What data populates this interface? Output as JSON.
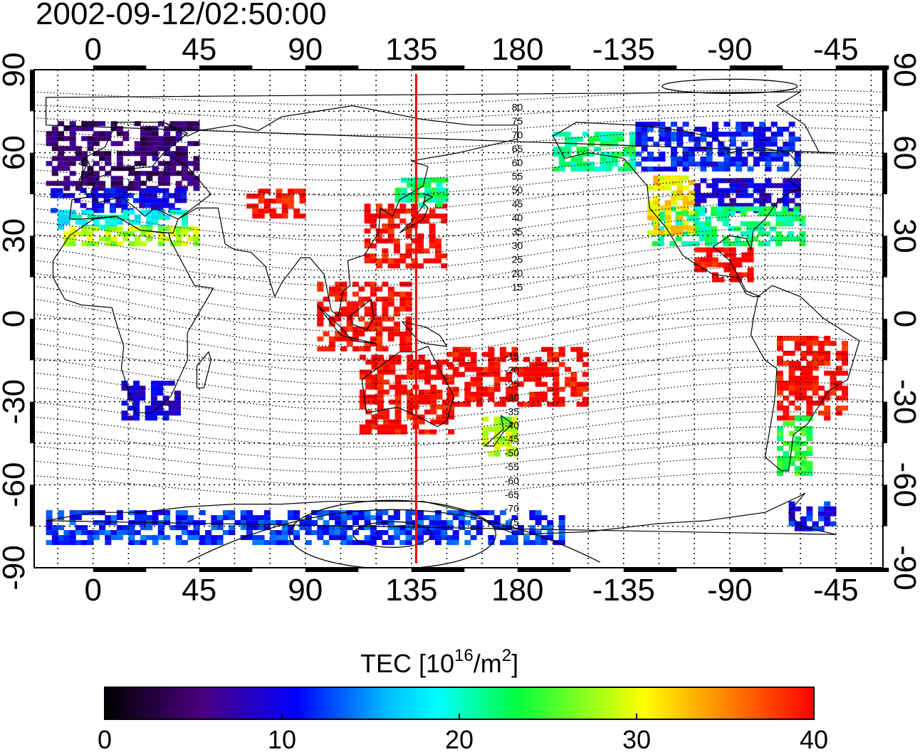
{
  "timestamp": "2002-09-12/02:50:00",
  "x_axis": {
    "ticks": [
      {
        "lon": 0,
        "label": "0"
      },
      {
        "lon": 45,
        "label": "45"
      },
      {
        "lon": 90,
        "label": "90"
      },
      {
        "lon": 135,
        "label": "135"
      },
      {
        "lon": 180,
        "label": "180"
      },
      {
        "lon": 225,
        "label": "-135"
      },
      {
        "lon": 270,
        "label": "-90"
      },
      {
        "lon": 315,
        "label": "-45"
      }
    ],
    "range": [
      -25,
      335
    ]
  },
  "y_axis": {
    "ticks": [
      {
        "lat": 90,
        "label": "90"
      },
      {
        "lat": 60,
        "label": "60"
      },
      {
        "lat": 30,
        "label": "30"
      },
      {
        "lat": 0,
        "label": "0"
      },
      {
        "lat": -30,
        "label": "-30"
      },
      {
        "lat": -60,
        "label": "-60"
      },
      {
        "lat": -90,
        "label": "-90"
      }
    ],
    "range": [
      -90,
      90
    ]
  },
  "marker_line": {
    "lon": 137,
    "color": "#ff0000"
  },
  "contour_labels_north": [
    "80",
    "75",
    "70",
    "65",
    "60",
    "55",
    "50",
    "45",
    "40",
    "35",
    "30",
    "25",
    "20",
    "15"
  ],
  "contour_labels_south": [
    "-15",
    "-20",
    "-25",
    "-30",
    "-35",
    "-40",
    "-45",
    "-50",
    "-55",
    "-60",
    "-65",
    "-70",
    "-75"
  ],
  "colorbar": {
    "title_main": "TEC  [10",
    "title_sup1": "16",
    "title_mid": "/m",
    "title_sup2": "2",
    "title_end": "]",
    "min": 0,
    "max": 40,
    "ticks": [
      "0",
      "10",
      "20",
      "30",
      "40"
    ],
    "colormap": [
      "#000000",
      "#4b0082",
      "#0000ff",
      "#00ffff",
      "#00ff00",
      "#ffff00",
      "#ff8000",
      "#ff0000"
    ]
  },
  "regions": [
    {
      "name": "europe-high",
      "lon": [
        -20,
        45
      ],
      "lat": [
        48,
        72
      ],
      "tec": 5
    },
    {
      "name": "europe-mid",
      "lon": [
        -18,
        42
      ],
      "lat": [
        40,
        48
      ],
      "tec": 10
    },
    {
      "name": "europe-south",
      "lon": [
        -15,
        40
      ],
      "lat": [
        34,
        40
      ],
      "tec": 19
    },
    {
      "name": "mediterranean",
      "lon": [
        -15,
        45
      ],
      "lat": [
        28,
        34
      ],
      "tec": 28
    },
    {
      "name": "central-asia",
      "lon": [
        65,
        90
      ],
      "lat": [
        38,
        48
      ],
      "tec": 40
    },
    {
      "name": "east-asia",
      "lon": [
        115,
        150
      ],
      "lat": [
        20,
        42
      ],
      "tec": 40
    },
    {
      "name": "japan-north",
      "lon": [
        128,
        150
      ],
      "lat": [
        42,
        52
      ],
      "tec": 22
    },
    {
      "name": "se-asia",
      "lon": [
        95,
        135
      ],
      "lat": [
        -10,
        15
      ],
      "tec": 40
    },
    {
      "name": "australia",
      "lon": [
        113,
        153
      ],
      "lat": [
        -40,
        -12
      ],
      "tec": 40
    },
    {
      "name": "west-pacific",
      "lon": [
        150,
        210
      ],
      "lat": [
        -30,
        -10
      ],
      "tec": 40
    },
    {
      "name": "new-zealand",
      "lon": [
        165,
        180
      ],
      "lat": [
        -48,
        -35
      ],
      "tec": 28
    },
    {
      "name": "north-america-north",
      "lon": [
        255,
        300
      ],
      "lat": [
        40,
        52
      ],
      "tec": 9
    },
    {
      "name": "north-america",
      "lon": [
        237,
        300
      ],
      "lat": [
        28,
        42
      ],
      "tec": 22
    },
    {
      "name": "north-america-west",
      "lon": [
        235,
        255
      ],
      "lat": [
        32,
        52
      ],
      "tec": 31
    },
    {
      "name": "mexico",
      "lon": [
        255,
        280
      ],
      "lat": [
        15,
        26
      ],
      "tec": 40
    },
    {
      "name": "south-america",
      "lon": [
        290,
        320
      ],
      "lat": [
        -35,
        -5
      ],
      "tec": 40
    },
    {
      "name": "south-america-south",
      "lon": [
        290,
        305
      ],
      "lat": [
        -55,
        -35
      ],
      "tec": 24
    },
    {
      "name": "south-africa",
      "lon": [
        12,
        35
      ],
      "lat": [
        -35,
        -22
      ],
      "tec": 9
    },
    {
      "name": "alaska",
      "lon": [
        195,
        230
      ],
      "lat": [
        55,
        68
      ],
      "tec": 22
    },
    {
      "name": "canada-north",
      "lon": [
        230,
        300
      ],
      "lat": [
        55,
        72
      ],
      "tec": 11
    },
    {
      "name": "antarctic-ring",
      "lon": [
        -20,
        200
      ],
      "lat": [
        -80,
        -68
      ],
      "tec": 12
    },
    {
      "name": "antarctic-peninsula",
      "lon": [
        295,
        315
      ],
      "lat": [
        -75,
        -65
      ],
      "tec": 11
    }
  ]
}
